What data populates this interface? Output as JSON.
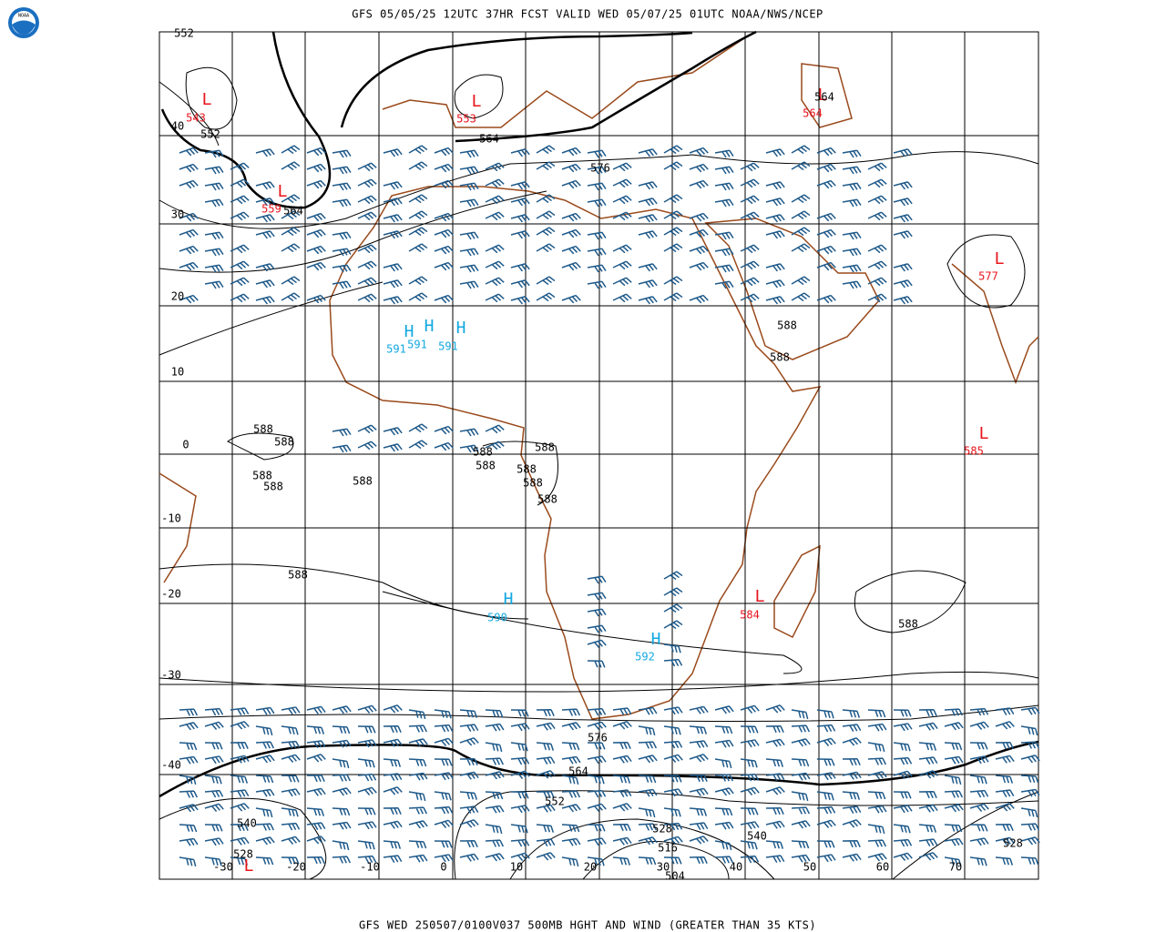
{
  "header": {
    "title": "GFS 05/05/25 12UTC 37HR FCST VALID WED 05/07/25 01UTC NOAA/NWS/NCEP"
  },
  "footer": {
    "caption": "GFS WED 250507/0100V037 500MB HGHT AND WIND (GREATER THAN 35 KTS)"
  },
  "lat_labels": [
    "40",
    "30",
    "20",
    "10",
    "0",
    "-10",
    "-20",
    "-30",
    "-40"
  ],
  "lon_labels": [
    "-30",
    "-20",
    "-10",
    "0",
    "10",
    "20",
    "30",
    "40",
    "50",
    "60",
    "70"
  ],
  "highs": [
    {
      "letter": "H",
      "value": "591"
    },
    {
      "letter": "H",
      "value": "591"
    },
    {
      "letter": "H",
      "value": "591"
    },
    {
      "letter": "H",
      "value": "590"
    },
    {
      "letter": "H",
      "value": "592"
    }
  ],
  "lows": [
    {
      "letter": "L",
      "value": "543"
    },
    {
      "letter": "L",
      "value": "553"
    },
    {
      "letter": "L",
      "value": "559"
    },
    {
      "letter": "L",
      "value": "564"
    },
    {
      "letter": "L",
      "value": "577"
    },
    {
      "letter": "L",
      "value": "585"
    },
    {
      "letter": "L",
      "value": "584"
    },
    {
      "letter": "L"
    }
  ],
  "contour_labels": [
    "552",
    "552",
    "564",
    "564",
    "576",
    "564",
    "588",
    "588",
    "588",
    "588",
    "588",
    "588",
    "588",
    "588",
    "588",
    "588",
    "588",
    "588",
    "588",
    "588",
    "588",
    "576",
    "564",
    "552",
    "540",
    "528",
    "516",
    "528",
    "504",
    "540",
    "528"
  ]
}
